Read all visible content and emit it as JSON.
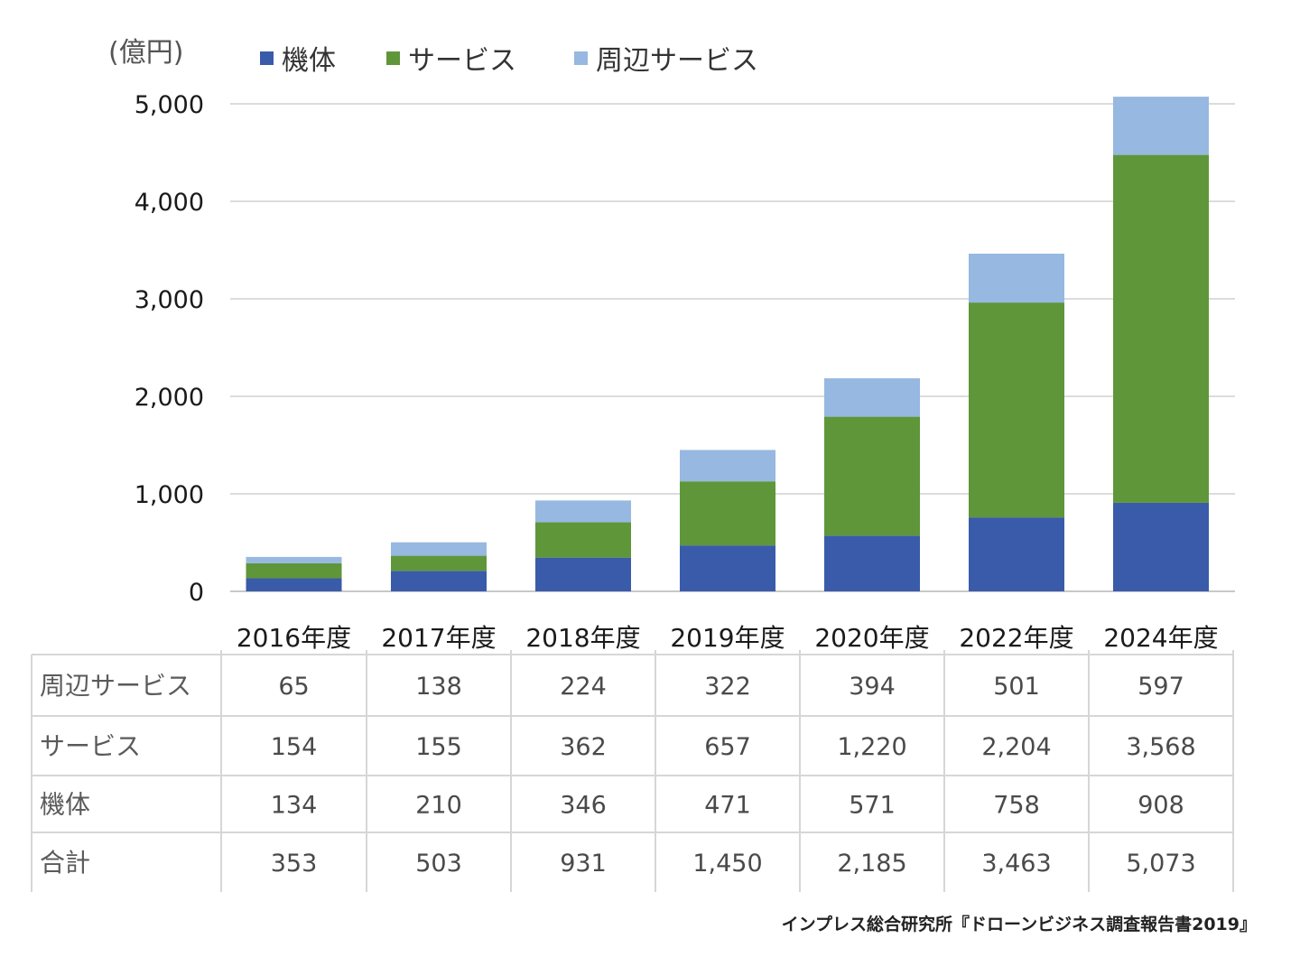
{
  "unit": "(億円)",
  "legend": [
    {
      "label": "機体",
      "color": "#3a5ba9"
    },
    {
      "label": "サービス",
      "color": "#5f963a"
    },
    {
      "label": "周辺サービス",
      "color": "#97b8e0"
    }
  ],
  "source": "インプレス総合研究所『ドローンビジネス調査報告書2019』",
  "chart_data": {
    "type": "bar",
    "stacked": true,
    "categories": [
      "2016年度",
      "2017年度",
      "2018年度",
      "2019年度",
      "2020年度",
      "2022年度",
      "2024年度"
    ],
    "series": [
      {
        "name": "機体",
        "values": [
          134,
          210,
          346,
          471,
          571,
          758,
          908
        ],
        "color": "#3a5ba9"
      },
      {
        "name": "サービス",
        "values": [
          154,
          155,
          362,
          657,
          1220,
          2204,
          3568
        ],
        "color": "#5f963a"
      },
      {
        "name": "周辺サービス",
        "values": [
          65,
          138,
          224,
          322,
          394,
          501,
          597
        ],
        "color": "#97b8e0"
      }
    ],
    "ylabel": "(億円)",
    "ylim": [
      0,
      5000
    ],
    "yticks": [
      0,
      1000,
      2000,
      3000,
      4000,
      5000
    ],
    "ytick_labels": [
      "0",
      "1,000",
      "2,000",
      "3,000",
      "4,000",
      "5,000"
    ],
    "grid": true,
    "legend_position": "top",
    "table": {
      "rows": [
        {
          "label": "周辺サービス",
          "values": [
            "65",
            "138",
            "224",
            "322",
            "394",
            "501",
            "597"
          ]
        },
        {
          "label": "サービス",
          "values": [
            "154",
            "155",
            "362",
            "657",
            "1,220",
            "2,204",
            "3,568"
          ]
        },
        {
          "label": "機体",
          "values": [
            "134",
            "210",
            "346",
            "471",
            "571",
            "758",
            "908"
          ]
        },
        {
          "label": "合計",
          "values": [
            "353",
            "503",
            "931",
            "1,450",
            "2,185",
            "3,463",
            "5,073"
          ]
        }
      ]
    }
  }
}
